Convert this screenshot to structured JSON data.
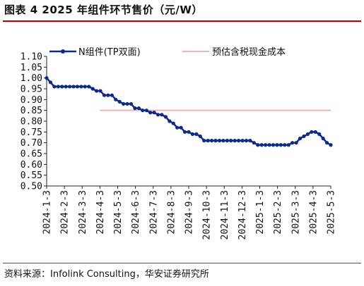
{
  "header": {
    "title": "图表 4  2025 年组件环节售价（元/W）"
  },
  "footer": {
    "source": "资料来源：Infolink Consulting，华安证券研究所"
  },
  "colors": {
    "series_line": "#0a2a8f",
    "cost_line": "#f4b3b3",
    "title_rule": "#c00000"
  },
  "chart_data": {
    "type": "line",
    "ylim": [
      0.5,
      1.1
    ],
    "yticks": [
      "1.10",
      "1.05",
      "1.00",
      "0.95",
      "0.90",
      "0.85",
      "0.80",
      "0.75",
      "0.70",
      "0.65",
      "0.60",
      "0.55",
      "0.50"
    ],
    "xlabels": [
      "2024-1-3",
      "2024-2-3",
      "2024-3-3",
      "2024-4-3",
      "2024-5-3",
      "2024-6-3",
      "2024-7-3",
      "2024-8-3",
      "2024-9-3",
      "2024-10-3",
      "2024-11-3",
      "2024-12-3",
      "2025-1-3",
      "2025-2-3",
      "2025-3-3",
      "2025-4-3",
      "2025-5-3"
    ],
    "legend": {
      "placement": "top"
    },
    "series": [
      {
        "name": "N组件(TP双面)",
        "style": "line-markers",
        "values": [
          1.0,
          0.98,
          0.96,
          0.96,
          0.96,
          0.96,
          0.96,
          0.96,
          0.96,
          0.96,
          0.96,
          0.96,
          0.95,
          0.94,
          0.94,
          0.92,
          0.92,
          0.92,
          0.9,
          0.89,
          0.88,
          0.88,
          0.88,
          0.86,
          0.86,
          0.85,
          0.85,
          0.84,
          0.84,
          0.83,
          0.83,
          0.82,
          0.8,
          0.79,
          0.77,
          0.77,
          0.75,
          0.75,
          0.74,
          0.74,
          0.73,
          0.71,
          0.71,
          0.71,
          0.71,
          0.71,
          0.71,
          0.71,
          0.71,
          0.71,
          0.71,
          0.71,
          0.71,
          0.71,
          0.7,
          0.69,
          0.69,
          0.69,
          0.69,
          0.69,
          0.69,
          0.69,
          0.69,
          0.69,
          0.7,
          0.7,
          0.72,
          0.73,
          0.74,
          0.75,
          0.75,
          0.74,
          0.72,
          0.7,
          0.69
        ]
      },
      {
        "name": "预估含税现金成本",
        "style": "flat-line",
        "value": 0.85,
        "x_range": [
          "2024-4-3",
          "2025-5-3"
        ]
      }
    ]
  }
}
